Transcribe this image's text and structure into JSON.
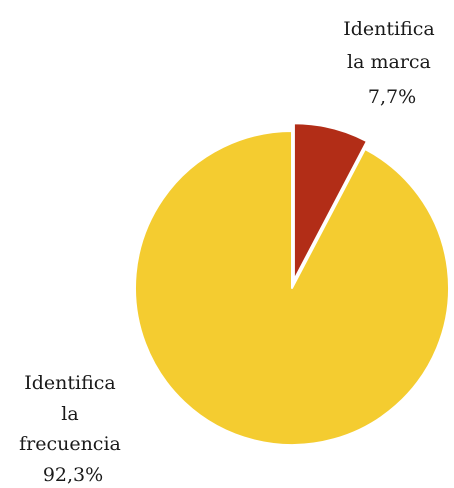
{
  "chart_data": {
    "type": "pie",
    "title": "",
    "slices": [
      {
        "label_lines": [
          "Identifica",
          "la marca"
        ],
        "value_label": "7,7%",
        "value": 7.7,
        "color": "#b22d17",
        "exploded": true
      },
      {
        "label_lines": [
          "Identifica",
          "la",
          "frecuencia"
        ],
        "value_label": "92,3%",
        "value": 92.3,
        "color": "#f4cc30",
        "exploded": false
      }
    ],
    "start_angle_deg": 0,
    "direction": "clockwise",
    "legend": "none"
  }
}
